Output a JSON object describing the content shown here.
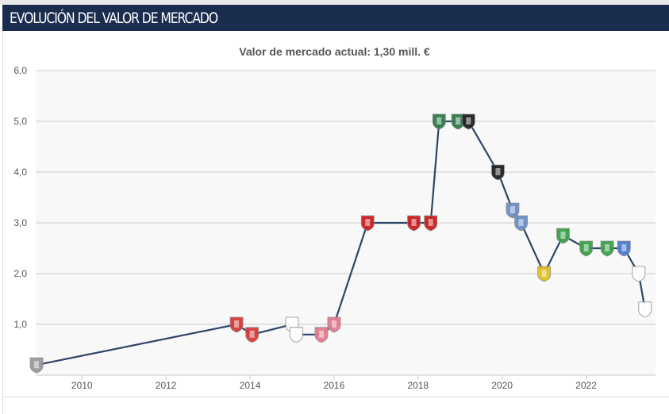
{
  "header": {
    "title": "EVOLUCIÓN DEL VALOR DE MERCADO"
  },
  "subtitle": "Valor de mercado actual: 1,30 mill. €",
  "colors": {
    "header_bg": "#1b2d4e",
    "line": "#2e4566",
    "grid": "#cccccc",
    "plot_bg": "#f8f8f8"
  },
  "chart_data": {
    "type": "line",
    "title": "",
    "xlabel": "",
    "ylabel": "",
    "xlim": [
      2008.9,
      2023.65
    ],
    "ylim": [
      0,
      6
    ],
    "grid": true,
    "legend": "none",
    "x_ticks": [
      "2010",
      "2012",
      "2014",
      "2016",
      "2018",
      "2020",
      "2022"
    ],
    "y_ticks": [
      "1,0",
      "2,0",
      "3,0",
      "4,0",
      "5,0",
      "6,0"
    ],
    "series": [
      {
        "marker": "club-crest",
        "points": [
          {
            "x": 2008.92,
            "y": 0.2,
            "crest_color": "#9a9a9a"
          },
          {
            "x": 2013.68,
            "y": 1.0,
            "crest_color": "#d93a3a"
          },
          {
            "x": 2014.05,
            "y": 0.8,
            "crest_color": "#d93a3a"
          },
          {
            "x": 2015.0,
            "y": 1.0,
            "crest_color": "#ffffff"
          },
          {
            "x": 2015.1,
            "y": 0.8,
            "crest_color": "#ffffff"
          },
          {
            "x": 2015.7,
            "y": 0.8,
            "crest_color": "#e37a8f"
          },
          {
            "x": 2016.0,
            "y": 1.0,
            "crest_color": "#e37a8f"
          },
          {
            "x": 2016.8,
            "y": 3.0,
            "crest_color": "#cc1f1f"
          },
          {
            "x": 2017.9,
            "y": 3.0,
            "crest_color": "#cc1f1f"
          },
          {
            "x": 2018.3,
            "y": 3.0,
            "crest_color": "#cc1f1f"
          },
          {
            "x": 2018.5,
            "y": 5.0,
            "crest_color": "#2f7a4a"
          },
          {
            "x": 2018.95,
            "y": 5.0,
            "crest_color": "#2f7a4a"
          },
          {
            "x": 2019.2,
            "y": 5.0,
            "crest_color": "#222222"
          },
          {
            "x": 2019.9,
            "y": 4.0,
            "crest_color": "#222222"
          },
          {
            "x": 2020.25,
            "y": 3.25,
            "crest_color": "#6b8fc8"
          },
          {
            "x": 2020.45,
            "y": 3.0,
            "crest_color": "#6b8fc8"
          },
          {
            "x": 2021.0,
            "y": 2.0,
            "crest_color": "#e0c020"
          },
          {
            "x": 2021.45,
            "y": 2.75,
            "crest_color": "#3aa04a"
          },
          {
            "x": 2022.0,
            "y": 2.5,
            "crest_color": "#3aa04a"
          },
          {
            "x": 2022.5,
            "y": 2.5,
            "crest_color": "#3aa04a"
          },
          {
            "x": 2022.9,
            "y": 2.5,
            "crest_color": "#4a7ad0"
          },
          {
            "x": 2023.25,
            "y": 2.0,
            "crest_color": "#ffffff"
          },
          {
            "x": 2023.4,
            "y": 1.3,
            "crest_color": "#ffffff"
          }
        ]
      }
    ]
  }
}
